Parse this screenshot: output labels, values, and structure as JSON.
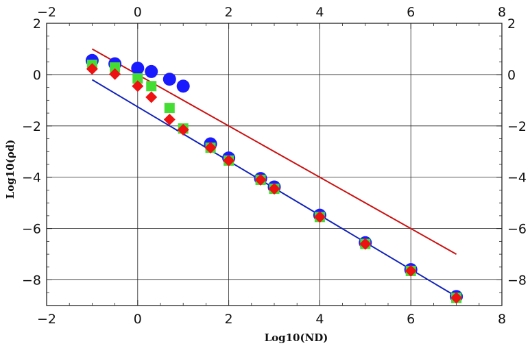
{
  "chart_data": {
    "type": "scatter",
    "title": "",
    "xlabel": "Log10(ND)",
    "ylabel": "Log10(ρd)",
    "xlim": [
      -2,
      8
    ],
    "ylim": [
      -9,
      2
    ],
    "xticks": [
      -2,
      0,
      2,
      4,
      6,
      8
    ],
    "yticks": [
      -8,
      -6,
      -4,
      -2,
      0,
      2
    ],
    "tick_labels": {
      "x": [
        "−2",
        "0",
        "2",
        "4",
        "6",
        "8"
      ],
      "y": [
        "−8",
        "−6",
        "−4",
        "−2",
        "0",
        "2"
      ]
    },
    "grid": true,
    "mirrored_axes": true,
    "series": [
      {
        "marker": "circle",
        "color": "#1a1aff",
        "points": [
          [
            -1,
            0.55
          ],
          [
            -0.5,
            0.42
          ],
          [
            0,
            0.25
          ],
          [
            0.3,
            0.12
          ],
          [
            0.7,
            -0.18
          ],
          [
            1,
            -0.45
          ],
          [
            1.6,
            -2.7
          ],
          [
            2,
            -3.25
          ],
          [
            2.7,
            -4.05
          ],
          [
            3,
            -4.38
          ],
          [
            4,
            -5.48
          ],
          [
            5,
            -6.55
          ],
          [
            6,
            -7.6
          ],
          [
            7,
            -8.65
          ]
        ]
      },
      {
        "marker": "square",
        "color": "#44dd33",
        "points": [
          [
            -1,
            0.38
          ],
          [
            -0.5,
            0.28
          ],
          [
            0,
            -0.15
          ],
          [
            0.3,
            -0.45
          ],
          [
            0.7,
            -1.3
          ],
          [
            1,
            -2.1
          ],
          [
            1.6,
            -2.85
          ],
          [
            2,
            -3.35
          ],
          [
            2.7,
            -4.1
          ],
          [
            3,
            -4.45
          ],
          [
            4,
            -5.55
          ],
          [
            5,
            -6.6
          ],
          [
            6,
            -7.65
          ],
          [
            7,
            -8.7
          ]
        ]
      },
      {
        "marker": "diamond",
        "color": "#ee1111",
        "points": [
          [
            -1,
            0.22
          ],
          [
            -0.5,
            0.02
          ],
          [
            0,
            -0.45
          ],
          [
            0.3,
            -0.88
          ],
          [
            0.7,
            -1.75
          ],
          [
            1,
            -2.15
          ],
          [
            1.6,
            -2.85
          ],
          [
            2,
            -3.35
          ],
          [
            2.7,
            -4.1
          ],
          [
            3,
            -4.45
          ],
          [
            4,
            -5.55
          ],
          [
            5,
            -6.6
          ],
          [
            6,
            -7.65
          ],
          [
            7,
            -8.7
          ]
        ]
      }
    ],
    "lines": [
      {
        "color": "#cc1111",
        "from": [
          -1,
          1.0
        ],
        "to": [
          7,
          -7.0
        ]
      },
      {
        "color": "#1122bb",
        "from": [
          -1,
          -0.2
        ],
        "to": [
          7,
          -8.65
        ]
      }
    ]
  }
}
